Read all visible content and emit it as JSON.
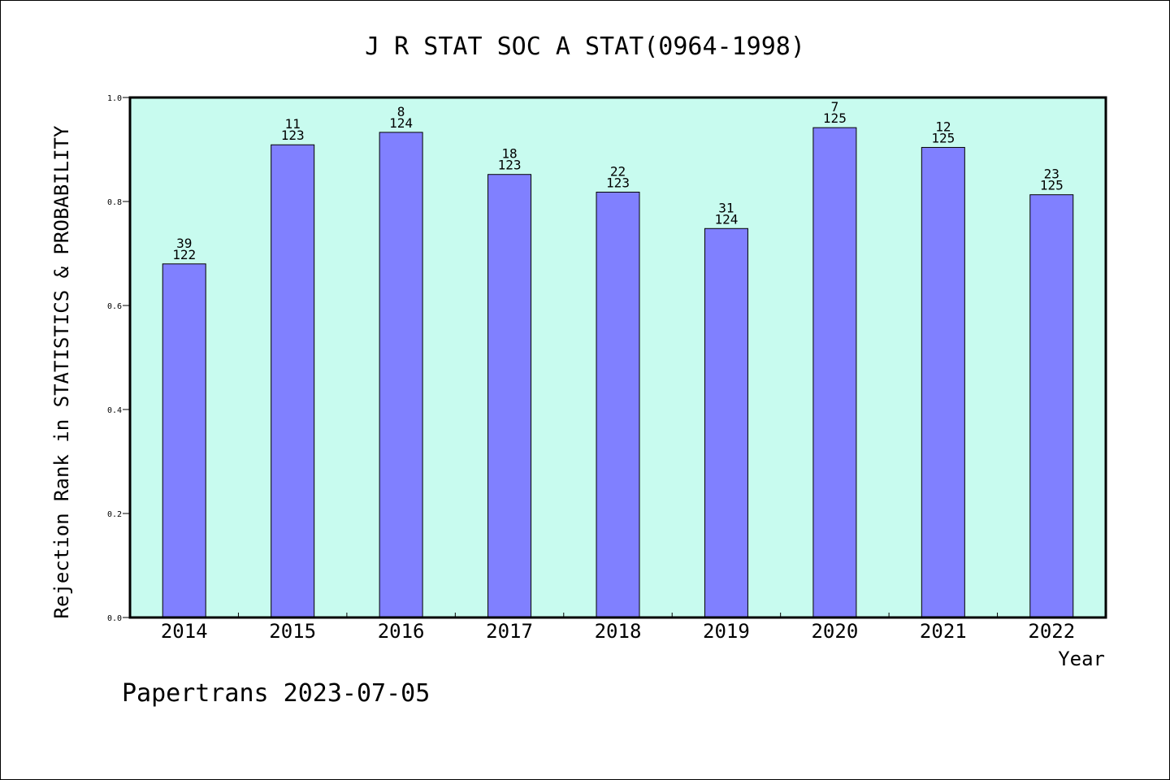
{
  "chart_data": {
    "type": "bar",
    "title": "J R STAT SOC A STAT(0964-1998)",
    "xlabel": "Year",
    "ylabel": "Rejection Rank in STATISTICS & PROBABILITY",
    "categories": [
      "2014",
      "2015",
      "2016",
      "2017",
      "2018",
      "2019",
      "2020",
      "2021",
      "2022"
    ],
    "values": [
      0.68,
      0.909,
      0.933,
      0.852,
      0.818,
      0.748,
      0.942,
      0.904,
      0.813
    ],
    "bar_labels_top": [
      "39",
      "11",
      "8",
      "18",
      "22",
      "31",
      "7",
      "12",
      "23"
    ],
    "bar_labels_bottom": [
      "122",
      "123",
      "124",
      "123",
      "123",
      "124",
      "125",
      "125",
      "125"
    ],
    "yticks": [
      "0.0",
      "0.2",
      "0.4",
      "0.6",
      "0.8",
      "1.0"
    ],
    "ylim": [
      0,
      1
    ],
    "grid": false,
    "colors": {
      "plot_background": "#c8fbef",
      "bar_fill": "#8080ff",
      "bar_stroke": "#000000"
    }
  },
  "footer": {
    "text": "Papertrans 2023-07-05"
  }
}
